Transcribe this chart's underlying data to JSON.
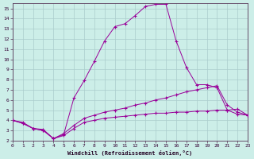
{
  "bg_color": "#cceee8",
  "grid_color": "#aacccc",
  "line_color": "#990099",
  "xlabel": "Windchill (Refroidissement éolien,°C)",
  "xlim": [
    0,
    23
  ],
  "ylim": [
    2,
    15.5
  ],
  "xticks": [
    0,
    1,
    2,
    3,
    4,
    5,
    6,
    7,
    8,
    9,
    10,
    11,
    12,
    13,
    14,
    15,
    16,
    17,
    18,
    19,
    20,
    21,
    22,
    23
  ],
  "yticks": [
    2,
    3,
    4,
    5,
    6,
    7,
    8,
    9,
    10,
    11,
    12,
    13,
    14,
    15
  ],
  "line1_x": [
    0,
    1,
    2,
    3,
    4,
    5,
    6,
    7,
    8,
    9,
    10,
    11,
    12,
    13,
    14,
    15,
    16,
    17,
    18,
    19,
    20,
    21,
    22,
    23
  ],
  "line1_y": [
    4.0,
    3.8,
    3.2,
    3.1,
    2.2,
    2.6,
    6.2,
    7.9,
    9.8,
    11.8,
    13.2,
    13.5,
    14.3,
    15.2,
    15.4,
    15.4,
    11.8,
    9.2,
    7.5,
    7.5,
    7.2,
    5.0,
    4.6,
    4.5
  ],
  "line2_x": [
    0,
    1,
    2,
    3,
    4,
    5,
    6,
    7,
    8,
    9,
    10,
    11,
    12,
    13,
    14,
    15,
    16,
    17,
    18,
    19,
    20,
    21,
    22,
    23
  ],
  "line2_y": [
    4.0,
    3.7,
    3.2,
    3.0,
    2.2,
    2.7,
    3.5,
    4.2,
    4.5,
    4.8,
    5.0,
    5.2,
    5.5,
    5.7,
    6.0,
    6.2,
    6.5,
    6.8,
    7.0,
    7.2,
    7.4,
    5.5,
    4.8,
    4.5
  ],
  "line3_x": [
    0,
    1,
    2,
    3,
    4,
    5,
    6,
    7,
    8,
    9,
    10,
    11,
    12,
    13,
    14,
    15,
    16,
    17,
    18,
    19,
    20,
    21,
    22,
    23
  ],
  "line3_y": [
    4.0,
    3.7,
    3.2,
    3.0,
    2.2,
    2.5,
    3.2,
    3.8,
    4.0,
    4.2,
    4.3,
    4.4,
    4.5,
    4.6,
    4.7,
    4.7,
    4.8,
    4.8,
    4.9,
    4.9,
    5.0,
    5.0,
    5.1,
    4.5
  ]
}
